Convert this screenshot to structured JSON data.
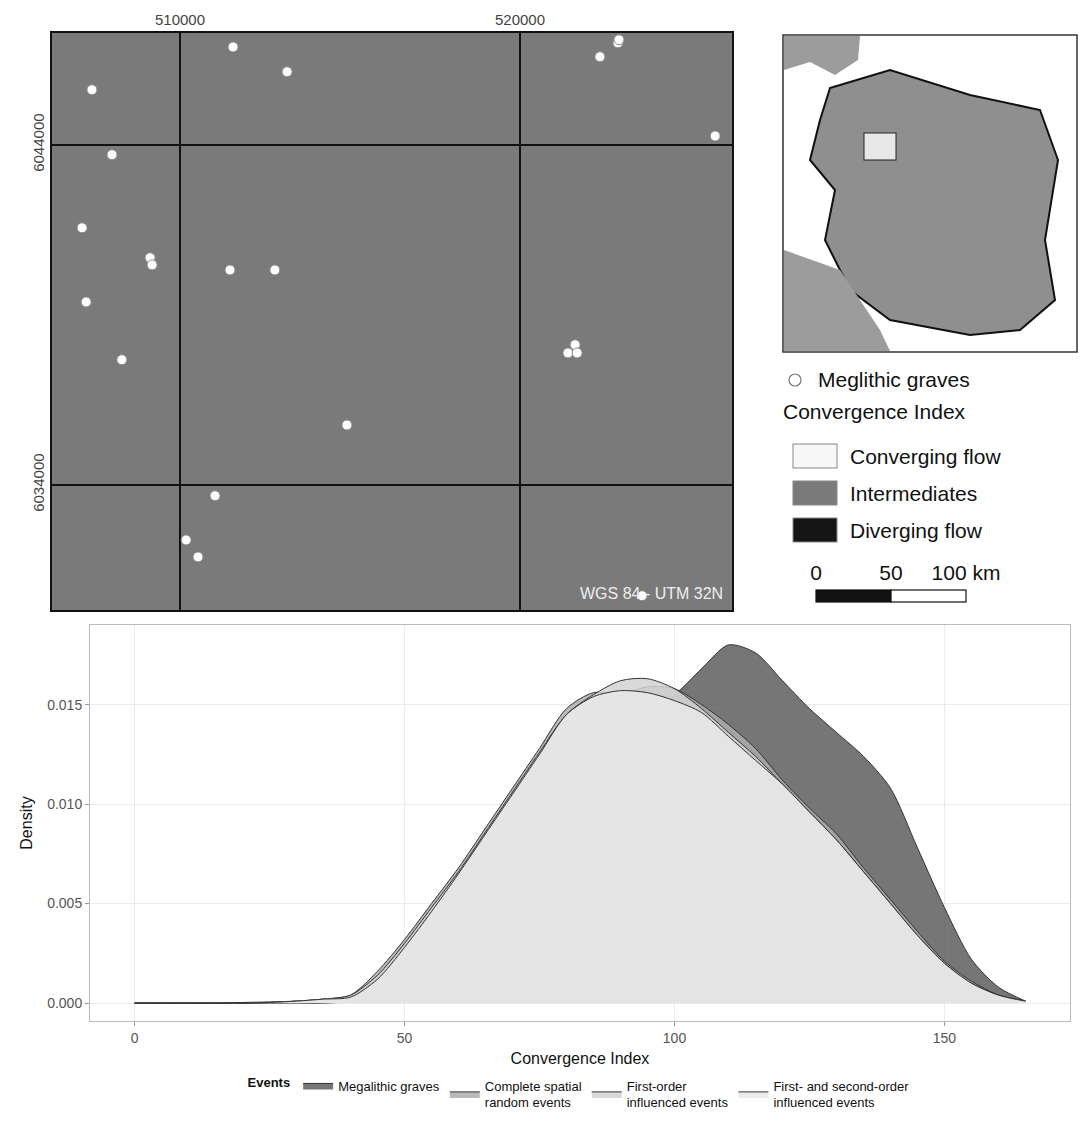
{
  "chart_data": [
    {
      "type": "scatter",
      "xlim": [
        506235,
        526235
      ],
      "xticks": [
        510000,
        520000
      ],
      "ylim": [
        6030320,
        6047290
      ],
      "yticks": [
        6034000,
        6044000
      ],
      "grid": true,
      "series": [
        {
          "name": "Meglithic graves",
          "color": "#ffffff",
          "marker": "circle",
          "x": [
            507410,
            511560,
            513150,
            508000,
            507120,
            509120,
            509180,
            511470,
            512790,
            507240,
            508290,
            514910,
            511030,
            510180,
            510530,
            522350,
            522880,
            522910,
            525740,
            521620,
            521410,
            521680,
            523590
          ],
          "y": [
            6045620,
            6046880,
            6046150,
            6043710,
            6041560,
            6040680,
            6040470,
            6040320,
            6040320,
            6039380,
            6037680,
            6035760,
            6033680,
            6032380,
            6031880,
            6046590,
            6047000,
            6047090,
            6044260,
            6038120,
            6037880,
            6037880,
            6030740
          ]
        }
      ],
      "annotations": [
        "WGS 84 - UTM 32N"
      ],
      "raster": {
        "title": "Convergence Index",
        "classes": [
          {
            "label": "Converging flow",
            "color": "#f7f7f7"
          },
          {
            "label": "Intermediates",
            "color": "#7a7a7a"
          },
          {
            "label": "Diverging flow",
            "color": "#151515"
          }
        ]
      },
      "scale_bar": {
        "ticks": [
          0,
          50,
          {
            "value": 100,
            "label": "100 km"
          }
        ]
      }
    },
    {
      "type": "area",
      "x_label": "Convergence Index",
      "y_label": "Density",
      "xlim": [
        -8.25,
        173.25
      ],
      "xticks": [
        0,
        50,
        100,
        150
      ],
      "ylim": [
        -0.0009,
        0.019
      ],
      "yticks": [
        {
          "value": 0,
          "label": "0.000"
        },
        {
          "value": 0.005,
          "label": "0.005"
        },
        {
          "value": 0.01,
          "label": "0.010"
        },
        {
          "value": 0.015,
          "label": "0.015"
        }
      ],
      "grid": true,
      "legend": "bottom",
      "legend_title": "Events",
      "x": [
        0,
        5,
        10,
        15,
        20,
        25,
        30,
        35,
        40,
        45,
        50,
        55,
        60,
        65,
        70,
        75,
        80,
        85,
        90,
        95,
        100,
        105,
        110,
        115,
        120,
        125,
        130,
        135,
        140,
        145,
        150,
        155,
        160,
        165
      ],
      "series": [
        {
          "name": "Megalithic graves",
          "color": "#5e5e5e",
          "values": [
            0,
            0,
            0,
            0,
            0,
            0,
            0,
            0,
            0.0001,
            0.0006,
            0.0018,
            0.0035,
            0.0052,
            0.0068,
            0.0088,
            0.011,
            0.0128,
            0.0136,
            0.0142,
            0.0148,
            0.0155,
            0.0168,
            0.018,
            0.0176,
            0.0162,
            0.0148,
            0.0136,
            0.0124,
            0.0108,
            0.0078,
            0.0048,
            0.0022,
            0.0008,
            0.0001
          ]
        },
        {
          "name": "Complete spatial random events",
          "color": "#adadad",
          "values": [
            0,
            0,
            0,
            0,
            3e-05,
            6e-05,
            0.0001,
            0.0002,
            0.0004,
            0.0016,
            0.0032,
            0.005,
            0.0068,
            0.0088,
            0.0108,
            0.0128,
            0.0148,
            0.0156,
            0.0155,
            0.0159,
            0.0158,
            0.015,
            0.014,
            0.0128,
            0.0112,
            0.0098,
            0.0085,
            0.0068,
            0.0052,
            0.0036,
            0.0021,
            0.0011,
            0.0004,
            0.0001
          ]
        },
        {
          "name": "First-order influenced events",
          "color": "#d2d2d2",
          "values": [
            0,
            0,
            0,
            0,
            0,
            3e-05,
            0.0001,
            0.0002,
            0.0004,
            0.0014,
            0.003,
            0.0048,
            0.0066,
            0.0086,
            0.0106,
            0.0126,
            0.0145,
            0.0155,
            0.0162,
            0.0163,
            0.0158,
            0.0148,
            0.0136,
            0.0124,
            0.011,
            0.0096,
            0.0082,
            0.0066,
            0.005,
            0.0034,
            0.002,
            0.001,
            0.0004,
            0.0001
          ]
        },
        {
          "name": "First- and second-order influenced events",
          "color": "#e9e9e9",
          "values": [
            0,
            0,
            0,
            0,
            0,
            3e-05,
            0.0001,
            0.0002,
            0.0003,
            0.0012,
            0.0028,
            0.0046,
            0.0065,
            0.0085,
            0.0105,
            0.0125,
            0.0145,
            0.0154,
            0.0157,
            0.0156,
            0.0152,
            0.0146,
            0.0134,
            0.0122,
            0.011,
            0.0096,
            0.0082,
            0.0066,
            0.005,
            0.0034,
            0.002,
            0.001,
            0.0004,
            0.0001
          ]
        }
      ]
    }
  ]
}
